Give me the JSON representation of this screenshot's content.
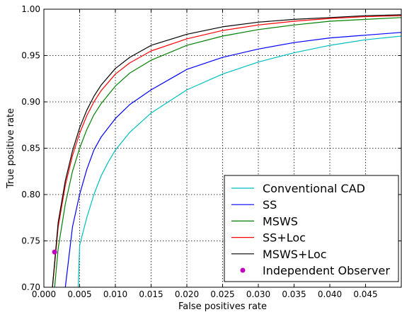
{
  "chart_data": {
    "type": "line",
    "title": "",
    "xlabel": "False positives rate",
    "ylabel": "True positive rate",
    "xlim": [
      0.0,
      0.05
    ],
    "ylim": [
      0.7,
      1.0
    ],
    "x_ticks": [
      0.0,
      0.005,
      0.01,
      0.015,
      0.02,
      0.025,
      0.03,
      0.035,
      0.04,
      0.045
    ],
    "x_tick_labels": [
      "0.000",
      "0.005",
      "0.010",
      "0.015",
      "0.020",
      "0.025",
      "0.030",
      "0.035",
      "0.040",
      "0.045"
    ],
    "y_ticks": [
      0.7,
      0.75,
      0.8,
      0.85,
      0.9,
      0.95,
      1.0
    ],
    "y_tick_labels": [
      "0.70",
      "0.75",
      "0.80",
      "0.85",
      "0.90",
      "0.95",
      "1.00"
    ],
    "grid": true,
    "grid_style": "dotted",
    "legend_position": "bottom-right",
    "series": [
      {
        "name": "Conventional CAD",
        "color": "#00bfbf",
        "x": [
          0.0048,
          0.005,
          0.006,
          0.007,
          0.008,
          0.009,
          0.01,
          0.012,
          0.015,
          0.02,
          0.025,
          0.03,
          0.035,
          0.04,
          0.045,
          0.05
        ],
        "y": [
          0.7,
          0.745,
          0.775,
          0.8,
          0.82,
          0.835,
          0.848,
          0.867,
          0.888,
          0.913,
          0.93,
          0.943,
          0.953,
          0.961,
          0.967,
          0.971
        ]
      },
      {
        "name": "SS",
        "color": "#0000ff",
        "x": [
          0.003,
          0.004,
          0.005,
          0.006,
          0.007,
          0.008,
          0.01,
          0.012,
          0.015,
          0.02,
          0.025,
          0.03,
          0.035,
          0.04,
          0.045,
          0.05
        ],
        "y": [
          0.7,
          0.765,
          0.8,
          0.827,
          0.848,
          0.862,
          0.882,
          0.897,
          0.913,
          0.935,
          0.948,
          0.957,
          0.964,
          0.969,
          0.972,
          0.975
        ]
      },
      {
        "name": "MSWS",
        "color": "#008000",
        "x": [
          0.0015,
          0.002,
          0.003,
          0.004,
          0.005,
          0.006,
          0.007,
          0.008,
          0.01,
          0.012,
          0.015,
          0.02,
          0.025,
          0.03,
          0.035,
          0.04,
          0.045,
          0.05
        ],
        "y": [
          0.7,
          0.742,
          0.79,
          0.825,
          0.85,
          0.87,
          0.886,
          0.898,
          0.917,
          0.931,
          0.945,
          0.961,
          0.971,
          0.978,
          0.983,
          0.987,
          0.989,
          0.991
        ]
      },
      {
        "name": "SS+Loc",
        "color": "#ff0000",
        "x": [
          0.0012,
          0.002,
          0.003,
          0.004,
          0.005,
          0.006,
          0.007,
          0.008,
          0.01,
          0.012,
          0.015,
          0.02,
          0.025,
          0.03,
          0.035,
          0.04,
          0.045,
          0.05
        ],
        "y": [
          0.7,
          0.765,
          0.81,
          0.842,
          0.866,
          0.885,
          0.9,
          0.912,
          0.93,
          0.942,
          0.955,
          0.968,
          0.977,
          0.983,
          0.987,
          0.99,
          0.992,
          0.993
        ]
      },
      {
        "name": "MSWS+Loc",
        "color": "#000000",
        "x": [
          0.0012,
          0.002,
          0.003,
          0.004,
          0.005,
          0.006,
          0.007,
          0.008,
          0.01,
          0.012,
          0.015,
          0.02,
          0.025,
          0.03,
          0.035,
          0.04,
          0.045,
          0.05
        ],
        "y": [
          0.7,
          0.77,
          0.815,
          0.847,
          0.872,
          0.891,
          0.906,
          0.918,
          0.936,
          0.948,
          0.961,
          0.973,
          0.981,
          0.986,
          0.989,
          0.991,
          0.993,
          0.994
        ]
      },
      {
        "name": "Independent Observer",
        "color": "#bf00bf",
        "marker": "circle",
        "x": [
          0.0015
        ],
        "y": [
          0.738
        ]
      }
    ]
  }
}
